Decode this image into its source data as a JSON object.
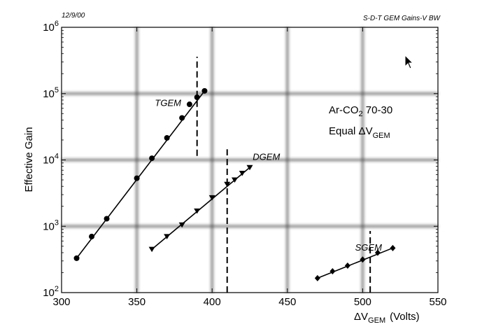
{
  "header": {
    "date": "12/9/00",
    "figure_id": "S-D-T GEM Gains-V BW"
  },
  "annotation": {
    "gas_prefix": "Ar-CO",
    "gas_sub": "2",
    "gas_suffix": " 70-30",
    "equal_prefix": "Equal ",
    "delta": "Δ",
    "v": "V",
    "v_sub": "GEM"
  },
  "chart_data": {
    "type": "scatter",
    "title": "",
    "ylabel": "Effective Gain",
    "xlabel_delta": "Δ",
    "xlabel_v": "V",
    "xlabel_sub": "GEM",
    "xlabel_unit": "(Volts)",
    "xlim": [
      300,
      550
    ],
    "ylim": [
      100,
      1000000
    ],
    "y_scale": "log",
    "grid": true,
    "x_ticks": [
      300,
      350,
      400,
      450,
      500,
      550
    ],
    "x_tick_labels": [
      "300",
      "350",
      "400",
      "450",
      "500",
      "550"
    ],
    "y_ticks": [
      100,
      1000,
      10000,
      100000,
      1000000
    ],
    "y_tick_base": "10",
    "y_tick_exps": [
      "2",
      "3",
      "4",
      "5",
      "6"
    ],
    "series": [
      {
        "name": "TGEM",
        "marker": "circle",
        "x": [
          310,
          320,
          330,
          350,
          360,
          370,
          380,
          385,
          390,
          395
        ],
        "y": [
          330,
          700,
          1300,
          5300,
          10600,
          21500,
          43000,
          69000,
          88000,
          110000
        ],
        "fit": [
          [
            310,
            330
          ],
          [
            395,
            110000
          ]
        ],
        "threshold_x": 390,
        "threshold_y": [
          11500,
          360000
        ],
        "label_x": 362,
        "label_y": 65000
      },
      {
        "name": "DGEM",
        "marker": "triangle-down",
        "x": [
          360,
          370,
          380,
          390,
          400,
          410,
          415,
          420,
          425
        ],
        "y": [
          450,
          700,
          1050,
          1700,
          2700,
          4300,
          5000,
          6300,
          7700
        ],
        "fit": [
          [
            360,
            450
          ],
          [
            425,
            7700
          ]
        ],
        "threshold_x": 410,
        "threshold_y": [
          100,
          14500
        ],
        "label_x": 427,
        "label_y": 10000
      },
      {
        "name": "SGEM",
        "marker": "diamond",
        "x": [
          470,
          480,
          490,
          500,
          510,
          520
        ],
        "y": [
          165,
          210,
          255,
          315,
          400,
          470
        ],
        "fit": [
          [
            470,
            165
          ],
          [
            520,
            470
          ]
        ],
        "threshold_x": 505,
        "threshold_y": [
          100,
          850
        ],
        "label_x": 495,
        "label_y": 430
      }
    ]
  }
}
